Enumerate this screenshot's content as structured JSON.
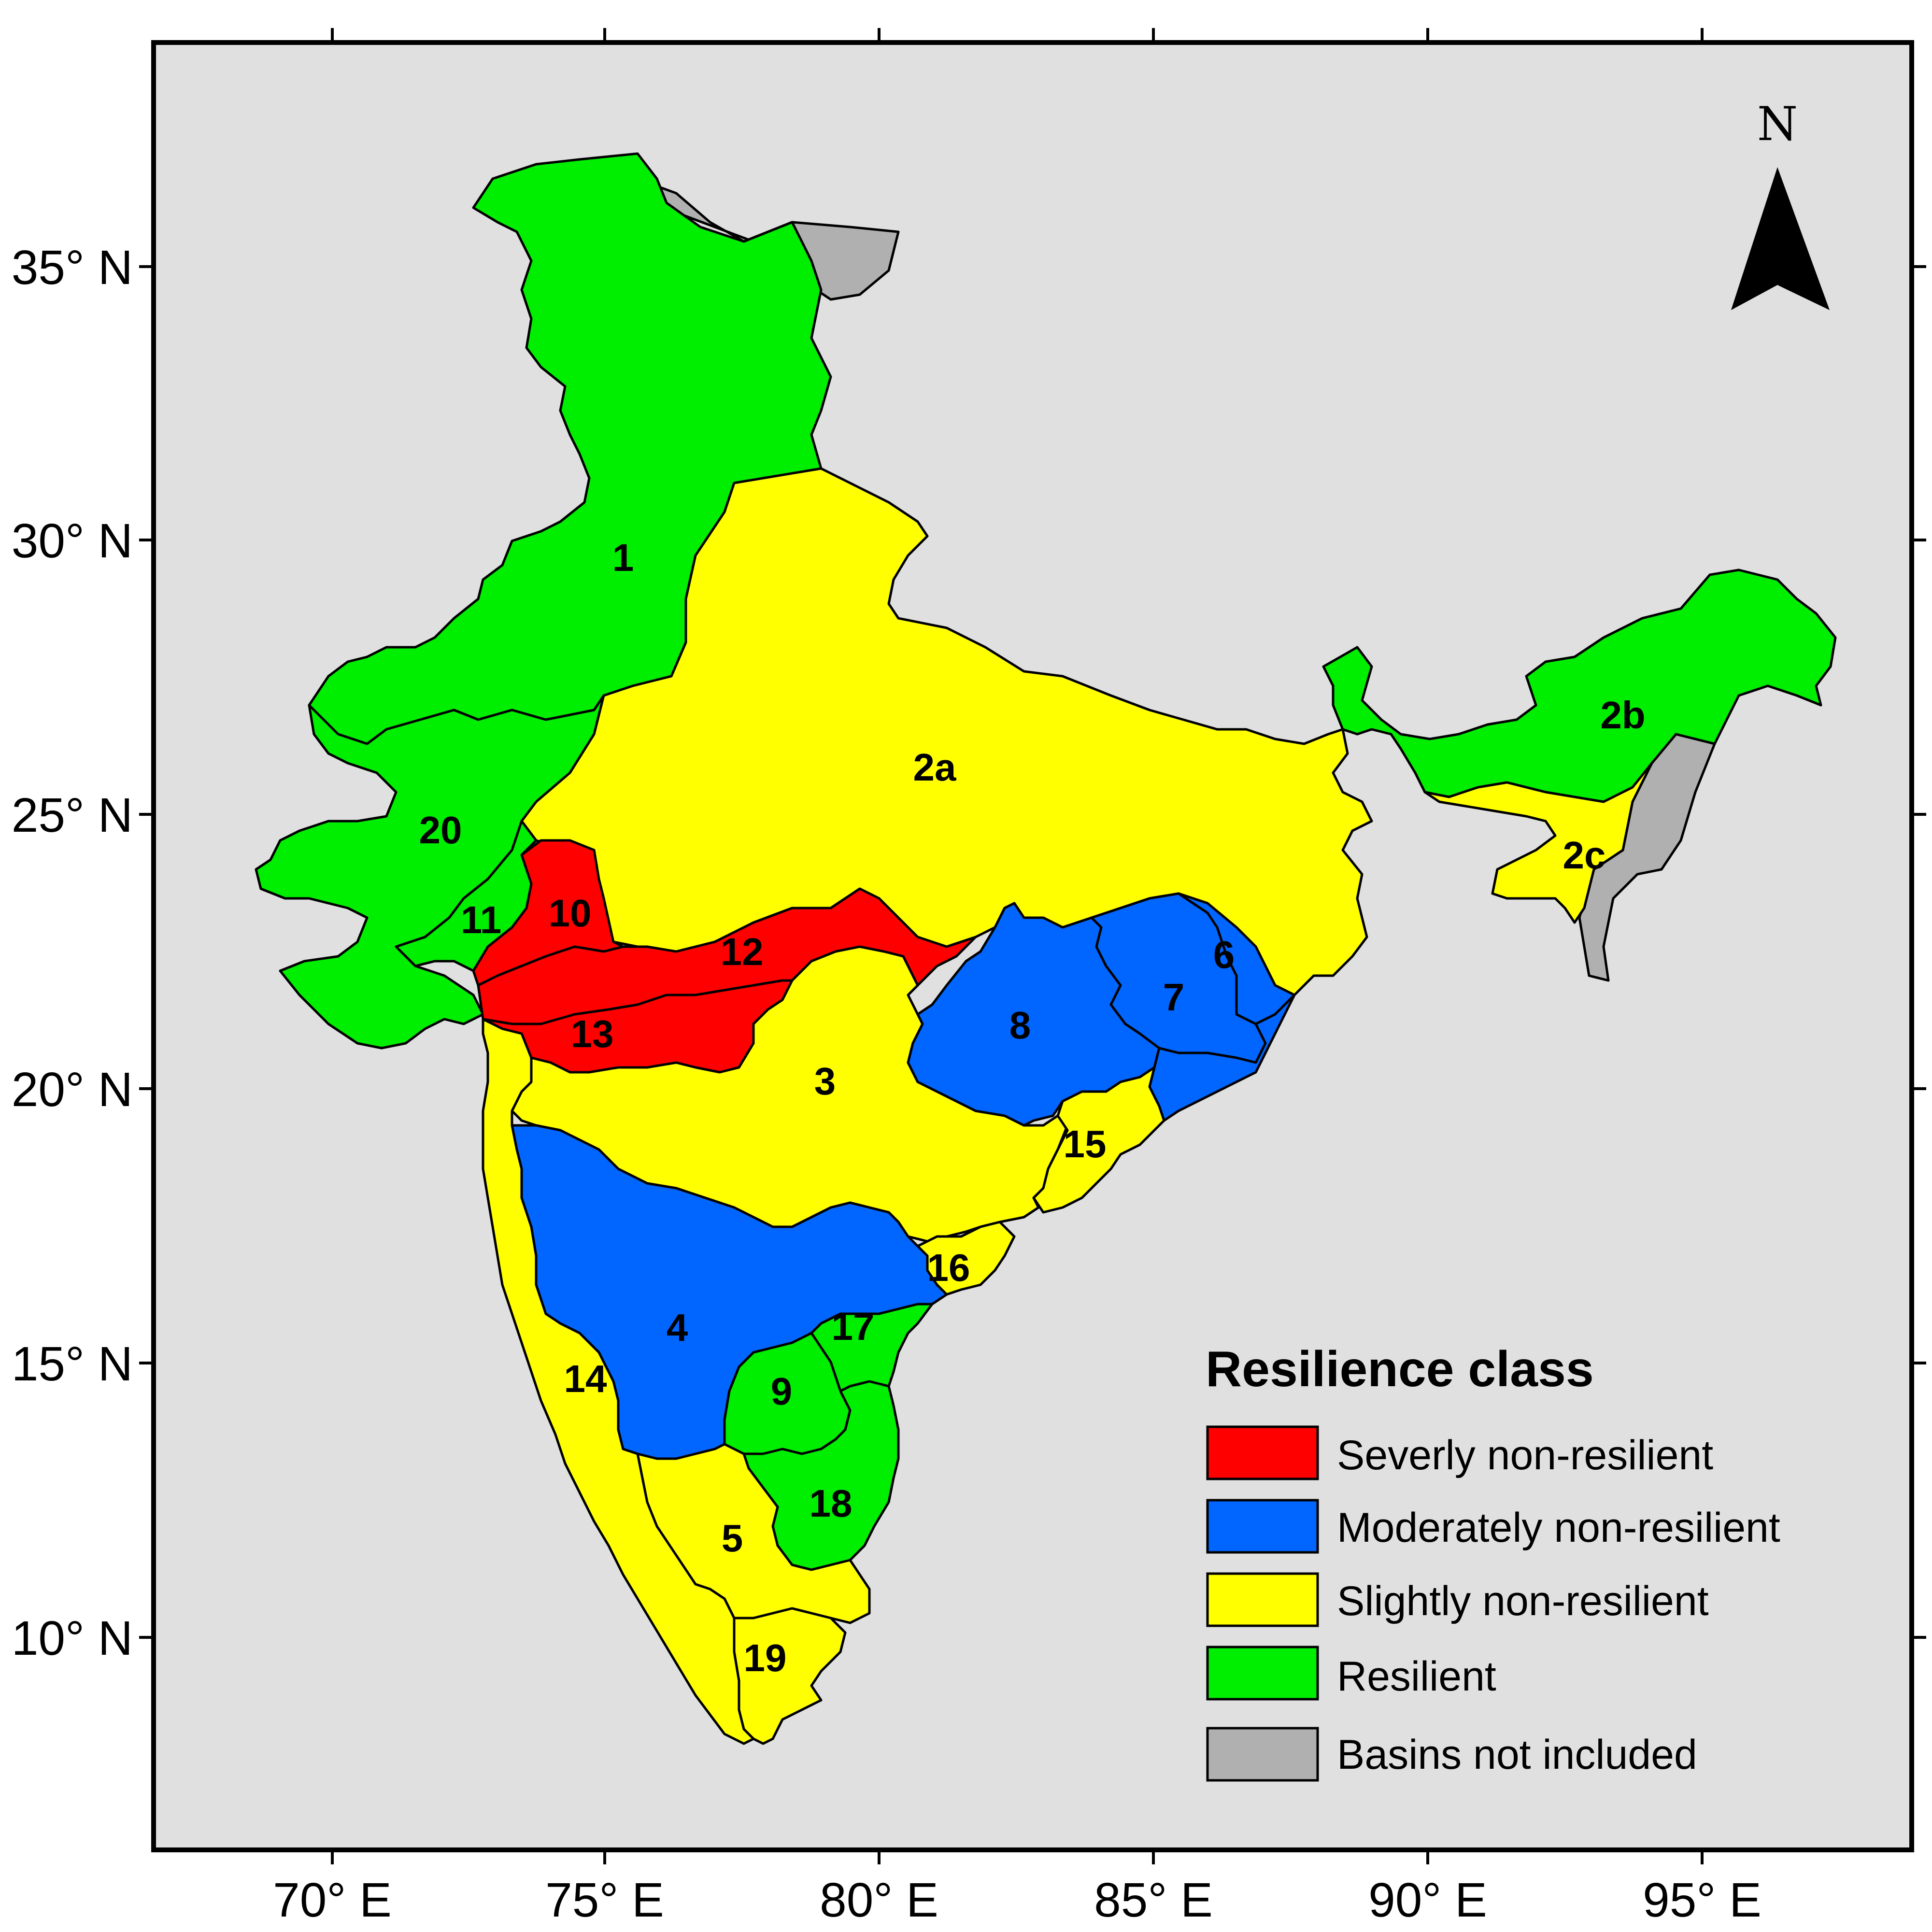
{
  "map": {
    "axes": {
      "longitude_ticks": [
        "70° E",
        "75° E",
        "80° E",
        "85° E",
        "90° E",
        "95° E"
      ],
      "latitude_ticks": [
        "35° N",
        "30° N",
        "25° N",
        "20° N",
        "15° N",
        "10° N"
      ]
    },
    "north_arrow": {
      "letter": "N"
    },
    "colors": {
      "background": "#e0e0e0",
      "severely": "#ff0000",
      "moderately": "#0066ff",
      "slightly": "#ffff00",
      "resilient": "#00ee00",
      "not_included": "#b0b0b0"
    },
    "basins": [
      {
        "id": "1",
        "class": "Resilient"
      },
      {
        "id": "2a",
        "class": "Slightly non-resilient"
      },
      {
        "id": "2b",
        "class": "Resilient"
      },
      {
        "id": "2c",
        "class": "Slightly non-resilient"
      },
      {
        "id": "3",
        "class": "Slightly non-resilient"
      },
      {
        "id": "4",
        "class": "Moderately non-resilient"
      },
      {
        "id": "5",
        "class": "Slightly non-resilient"
      },
      {
        "id": "6",
        "class": "Moderately non-resilient"
      },
      {
        "id": "7",
        "class": "Moderately non-resilient"
      },
      {
        "id": "8",
        "class": "Moderately non-resilient"
      },
      {
        "id": "9",
        "class": "Resilient"
      },
      {
        "id": "10",
        "class": "Severly non-resilient"
      },
      {
        "id": "11",
        "class": "Resilient"
      },
      {
        "id": "12",
        "class": "Severly non-resilient"
      },
      {
        "id": "13",
        "class": "Severly non-resilient"
      },
      {
        "id": "14",
        "class": "Slightly non-resilient"
      },
      {
        "id": "15",
        "class": "Slightly non-resilient"
      },
      {
        "id": "16",
        "class": "Slightly non-resilient"
      },
      {
        "id": "17",
        "class": "Resilient"
      },
      {
        "id": "18",
        "class": "Resilient"
      },
      {
        "id": "19",
        "class": "Slightly non-resilient"
      },
      {
        "id": "20",
        "class": "Resilient"
      }
    ],
    "legend": {
      "title": "Resilience class",
      "items": [
        {
          "label": "Severly non-resilient",
          "color": "#ff0000"
        },
        {
          "label": "Moderately non-resilient",
          "color": "#0066ff"
        },
        {
          "label": "Slightly non-resilient",
          "color": "#ffff00"
        },
        {
          "label": "Resilient",
          "color": "#00ee00"
        },
        {
          "label": "Basins not included",
          "color": "#b0b0b0"
        }
      ]
    }
  }
}
